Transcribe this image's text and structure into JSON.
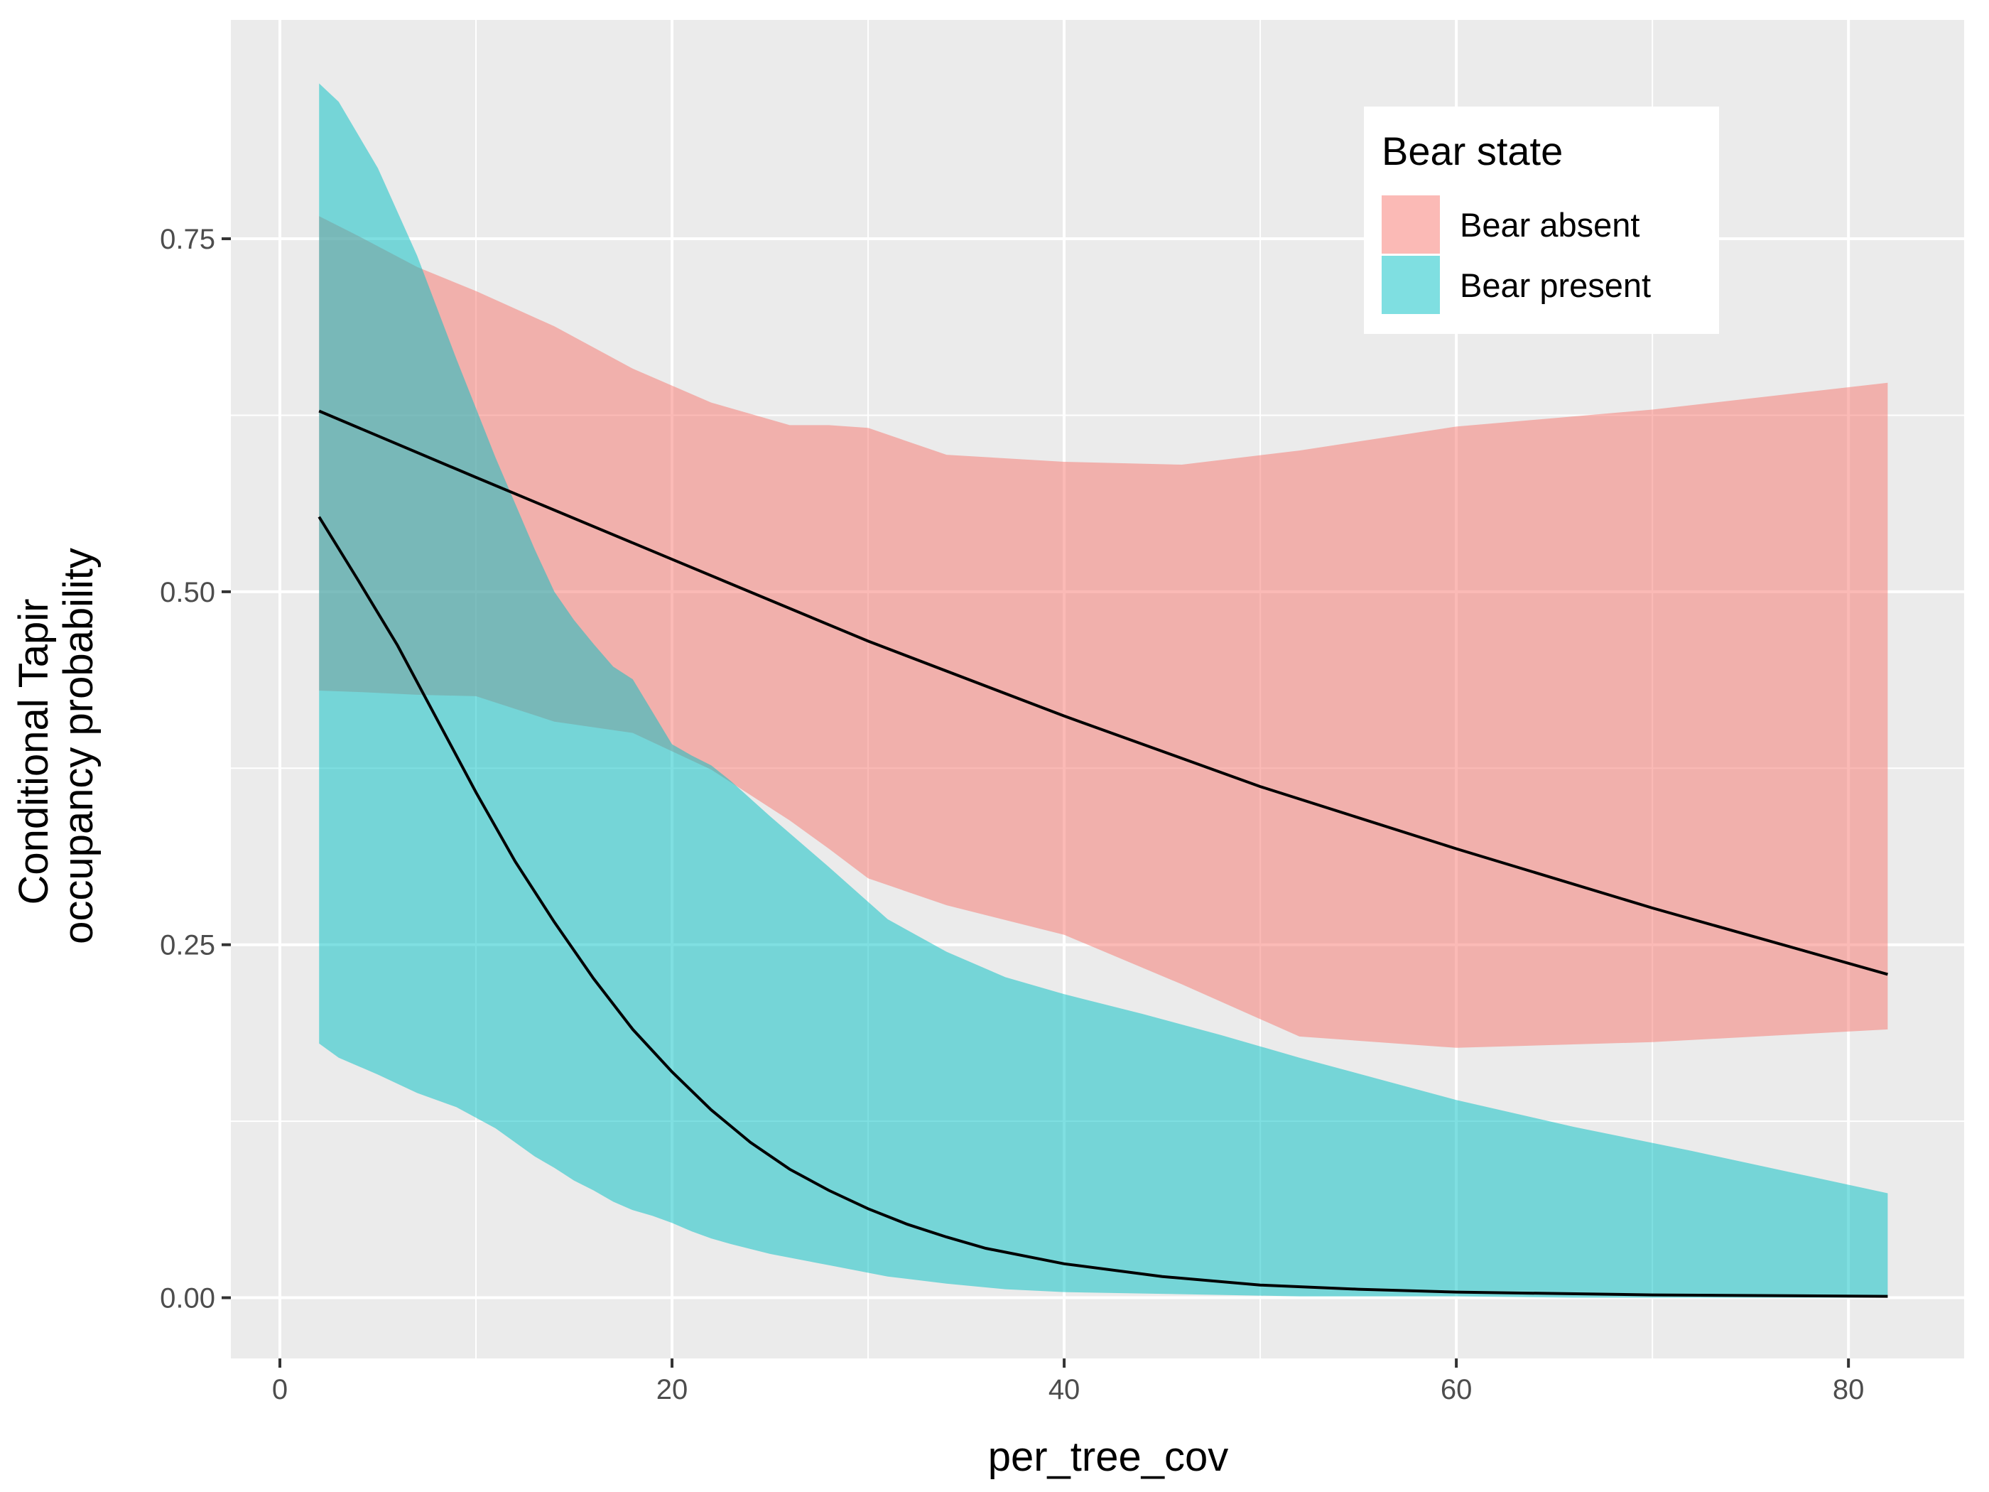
{
  "chart_data": {
    "type": "area",
    "xlabel": "per_tree_cov",
    "ylabel_lines": [
      "Conditional Tapir",
      "occupancy probability"
    ],
    "xlim": [
      -2.5,
      85.9
    ],
    "ylim": [
      -0.043,
      0.905
    ],
    "x_ticks": [
      0,
      20,
      40,
      60,
      80
    ],
    "x_tick_labels": [
      "0",
      "20",
      "40",
      "60",
      "80"
    ],
    "y_ticks": [
      0,
      0.25,
      0.5,
      0.75
    ],
    "y_tick_labels": [
      "0.00",
      "0.25",
      "0.50",
      "0.75"
    ],
    "grid": true,
    "legend": {
      "title": "Bear state",
      "placement": "top-right",
      "entries": [
        "Bear absent",
        "Bear present"
      ]
    },
    "series": [
      {
        "name": "Bear absent",
        "color": "#F8766D",
        "ribbon": {
          "x": [
            2,
            4,
            7,
            10,
            14,
            18,
            22,
            26,
            28,
            30,
            34,
            40,
            46,
            52,
            60,
            70,
            82
          ],
          "upper": [
            0.766,
            0.752,
            0.73,
            0.713,
            0.688,
            0.658,
            0.634,
            0.618,
            0.618,
            0.616,
            0.597,
            0.592,
            0.59,
            0.6,
            0.617,
            0.629,
            0.648
          ],
          "lower": [
            0.43,
            0.429,
            0.427,
            0.426,
            0.408,
            0.4,
            0.374,
            0.338,
            0.318,
            0.297,
            0.278,
            0.257,
            0.222,
            0.185,
            0.177,
            0.181,
            0.19
          ]
        },
        "line": {
          "x": [
            2,
            10,
            20,
            30,
            40,
            50,
            60,
            70,
            82
          ],
          "y": [
            0.628,
            0.581,
            0.523,
            0.465,
            0.412,
            0.362,
            0.318,
            0.276,
            0.229
          ]
        }
      },
      {
        "name": "Bear present",
        "color": "#00BFC4",
        "ribbon": {
          "x": [
            2,
            3,
            5,
            7,
            9,
            11,
            13,
            14,
            15,
            16,
            17,
            18,
            19,
            20,
            21,
            22,
            23,
            25,
            28,
            31,
            34,
            37,
            40,
            44,
            48,
            52,
            56,
            60,
            66,
            72,
            82
          ],
          "upper": [
            0.86,
            0.847,
            0.8,
            0.738,
            0.665,
            0.595,
            0.53,
            0.5,
            0.48,
            0.463,
            0.447,
            0.438,
            0.415,
            0.392,
            0.384,
            0.377,
            0.366,
            0.341,
            0.305,
            0.268,
            0.245,
            0.227,
            0.215,
            0.201,
            0.186,
            0.17,
            0.155,
            0.14,
            0.121,
            0.104,
            0.074
          ],
          "lower": [
            0.18,
            0.17,
            0.158,
            0.145,
            0.135,
            0.12,
            0.1,
            0.092,
            0.083,
            0.076,
            0.068,
            0.062,
            0.058,
            0.053,
            0.047,
            0.042,
            0.038,
            0.031,
            0.023,
            0.015,
            0.01,
            0.006,
            0.004,
            0.003,
            0.002,
            0.001,
            0.001,
            0.001,
            0.0,
            0.0,
            0.0
          ]
        },
        "line": {
          "x": [
            2,
            4,
            6,
            8,
            10,
            12,
            14,
            16,
            18,
            20,
            22,
            24,
            26,
            28,
            30,
            32,
            34,
            36,
            40,
            45,
            50,
            55,
            60,
            70,
            82
          ],
          "y": [
            0.553,
            0.508,
            0.462,
            0.41,
            0.358,
            0.309,
            0.266,
            0.226,
            0.19,
            0.16,
            0.133,
            0.11,
            0.091,
            0.076,
            0.063,
            0.052,
            0.043,
            0.035,
            0.024,
            0.015,
            0.009,
            0.006,
            0.004,
            0.002,
            0.001
          ]
        }
      }
    ]
  }
}
